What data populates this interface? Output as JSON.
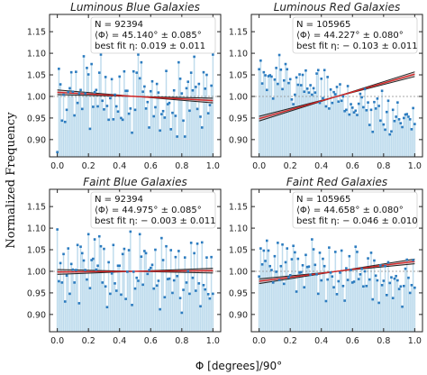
{
  "figure": {
    "ylabel": "Normalized Frequency",
    "xlabel": "Φ [degrees]/90°",
    "colors": {
      "points": "#2b7bbf",
      "fill": "#d6eaf5",
      "stem": "#b9d7ea",
      "fit": "#222222",
      "band": "#b39a9a",
      "model": "#d62728",
      "reference": "#8a8a8a"
    }
  },
  "chart_data": [
    {
      "type": "scatter",
      "title": "Luminous Blue Galaxies",
      "annotation": {
        "n": "N = 92394",
        "phi": "⟨Φ⟩ = 45.140° ± 0.085°",
        "fit": "best fit η: 0.019 ± 0.011"
      },
      "eta": 0.019,
      "xlim": [
        -0.05,
        1.05
      ],
      "ylim": [
        0.86,
        1.19
      ],
      "xticks": [
        "0.0",
        "0.2",
        "0.4",
        "0.6",
        "0.8",
        "1.0"
      ],
      "yticks": [
        "0.90",
        "0.95",
        "1.00",
        "1.05",
        "1.10",
        "1.15"
      ],
      "x": [
        0.0,
        0.01,
        0.02,
        0.03,
        0.04,
        0.05,
        0.06,
        0.07,
        0.08,
        0.09,
        0.1,
        0.11,
        0.12,
        0.13,
        0.14,
        0.15,
        0.16,
        0.17,
        0.18,
        0.19,
        0.2,
        0.21,
        0.22,
        0.23,
        0.24,
        0.25,
        0.26,
        0.27,
        0.28,
        0.29,
        0.3,
        0.31,
        0.32,
        0.33,
        0.34,
        0.35,
        0.36,
        0.37,
        0.38,
        0.39,
        0.4,
        0.41,
        0.42,
        0.43,
        0.44,
        0.45,
        0.46,
        0.47,
        0.48,
        0.49,
        0.5,
        0.51,
        0.52,
        0.53,
        0.54,
        0.55,
        0.56,
        0.57,
        0.58,
        0.59,
        0.6,
        0.61,
        0.62,
        0.63,
        0.64,
        0.65,
        0.66,
        0.67,
        0.68,
        0.69,
        0.7,
        0.71,
        0.72,
        0.73,
        0.74,
        0.75,
        0.76,
        0.77,
        0.78,
        0.79,
        0.8,
        0.81,
        0.82,
        0.83,
        0.84,
        0.85,
        0.86,
        0.87,
        0.88,
        0.89,
        0.9,
        0.91,
        0.92,
        0.93,
        0.94,
        0.95,
        0.96,
        0.97,
        0.98,
        0.99,
        1.0
      ],
      "y": [
        0.871,
        1.064,
        1.028,
        0.944,
        1.004,
        0.941,
        0.969,
        1.01,
        1.019,
        1.056,
        1.011,
        0.956,
        1.057,
        0.985,
        1.007,
        1.015,
        0.971,
        1.093,
        1.007,
        1.066,
        1.051,
        0.925,
        1.075,
        0.976,
        1.01,
        1.015,
        0.977,
        1.055,
        1.097,
        0.99,
        0.97,
        1.045,
        0.978,
        0.946,
        0.996,
        1.04,
        0.947,
        1.004,
        0.977,
        0.965,
        1.046,
        0.95,
        0.946,
        1.058,
        1.013,
        1.013,
        0.96,
        0.972,
        0.916,
        1.058,
        0.969,
        1.055,
        1.097,
        1.042,
        1.079,
        1.011,
        1.023,
        0.972,
        0.987,
        0.928,
        1.012,
        1.035,
        0.954,
        0.975,
        1.029,
        1.009,
        0.921,
        0.959,
        0.966,
        0.951,
        1.059,
        0.982,
        0.985,
        0.924,
        0.962,
        1.014,
        0.955,
        0.907,
        1.079,
        1.041,
        1.007,
        0.944,
        0.907,
        1.019,
        1.034,
        0.967,
        1.055,
        1.014,
        1.092,
        1.022,
        0.971,
        1.029,
        0.953,
        0.928,
        1.056,
        1.018,
        1.05,
        0.961,
        0.98,
        1.025,
        1.097
      ]
    },
    {
      "type": "scatter",
      "title": "Luminous Red Galaxies",
      "annotation": {
        "n": "N = 105965",
        "phi": "⟨Φ⟩ = 44.227° ± 0.080°",
        "fit": "best fit η: − 0.103 ± 0.011"
      },
      "eta": -0.103,
      "xlim": [
        -0.05,
        1.05
      ],
      "ylim": [
        0.86,
        1.19
      ],
      "xticks": [
        "0.0",
        "0.2",
        "0.4",
        "0.6",
        "0.8",
        "1.0"
      ],
      "yticks": [
        "0.90",
        "0.95",
        "1.00",
        "1.05",
        "1.10",
        "1.15"
      ],
      "x": [
        0.0,
        0.01,
        0.02,
        0.03,
        0.04,
        0.05,
        0.06,
        0.07,
        0.08,
        0.09,
        0.1,
        0.11,
        0.12,
        0.13,
        0.14,
        0.15,
        0.16,
        0.17,
        0.18,
        0.19,
        0.2,
        0.21,
        0.22,
        0.23,
        0.24,
        0.25,
        0.26,
        0.27,
        0.28,
        0.29,
        0.3,
        0.31,
        0.32,
        0.33,
        0.34,
        0.35,
        0.36,
        0.37,
        0.38,
        0.39,
        0.4,
        0.41,
        0.42,
        0.43,
        0.44,
        0.45,
        0.46,
        0.47,
        0.48,
        0.49,
        0.5,
        0.51,
        0.52,
        0.53,
        0.54,
        0.55,
        0.56,
        0.57,
        0.58,
        0.59,
        0.6,
        0.61,
        0.62,
        0.63,
        0.64,
        0.65,
        0.66,
        0.67,
        0.68,
        0.69,
        0.7,
        0.71,
        0.72,
        0.73,
        0.74,
        0.75,
        0.76,
        0.77,
        0.78,
        0.79,
        0.8,
        0.81,
        0.82,
        0.83,
        0.84,
        0.85,
        0.86,
        0.87,
        0.88,
        0.89,
        0.9,
        0.91,
        0.92,
        0.93,
        0.94,
        0.95,
        0.96,
        0.97,
        0.98,
        0.99,
        1.0
      ],
      "y": [
        1.063,
        1.083,
        1.03,
        1.056,
        1.049,
        1.015,
        1.047,
        1.049,
        1.046,
        0.995,
        1.039,
        1.066,
        1.029,
        1.096,
        1.062,
        1.017,
        1.037,
        1.075,
        1.063,
        1.031,
        1.04,
        0.993,
        0.982,
        1.004,
        1.044,
        1.027,
        1.051,
        1.026,
        1.05,
        1.011,
        1.06,
        1.018,
        1.009,
        1.026,
        1.004,
        1.019,
        1.009,
        1.053,
        1.061,
        0.985,
        1.041,
        0.996,
        1.061,
        0.977,
        1.045,
        0.972,
        1.016,
        0.985,
        1.01,
        1.005,
        1.022,
        0.988,
        1.028,
        0.99,
        1.0,
        0.966,
        0.969,
        1.024,
        0.958,
        0.982,
        0.974,
        0.963,
        0.967,
        0.957,
        0.983,
        1.006,
        0.998,
        0.975,
        1.017,
        0.968,
        0.986,
        0.934,
        0.969,
        0.918,
        0.987,
        0.972,
        0.995,
        0.978,
        0.944,
        1.013,
        0.935,
        0.923,
        0.964,
        0.99,
        0.912,
        0.919,
        0.969,
        0.943,
        0.953,
        0.986,
        0.947,
        0.938,
        0.929,
        0.95,
        0.958,
        0.959,
        0.953,
        0.947,
        0.924,
        0.973,
        0.936
      ]
    },
    {
      "type": "scatter",
      "title": "Faint Blue Galaxies",
      "annotation": {
        "n": "N = 92394",
        "phi": "⟨Φ⟩ = 44.975° ± 0.085°",
        "fit": "best fit η: − 0.003 ± 0.011"
      },
      "eta": -0.003,
      "xlim": [
        -0.05,
        1.05
      ],
      "ylim": [
        0.86,
        1.19
      ],
      "xticks": [
        "0.0",
        "0.2",
        "0.4",
        "0.6",
        "0.8",
        "1.0"
      ],
      "yticks": [
        "0.90",
        "0.95",
        "1.00",
        "1.05",
        "1.10",
        "1.15"
      ],
      "x": [
        0.0,
        0.01,
        0.02,
        0.03,
        0.04,
        0.05,
        0.06,
        0.07,
        0.08,
        0.09,
        0.1,
        0.11,
        0.12,
        0.13,
        0.14,
        0.15,
        0.16,
        0.17,
        0.18,
        0.19,
        0.2,
        0.21,
        0.22,
        0.23,
        0.24,
        0.25,
        0.26,
        0.27,
        0.28,
        0.29,
        0.3,
        0.31,
        0.32,
        0.33,
        0.34,
        0.35,
        0.36,
        0.37,
        0.38,
        0.39,
        0.4,
        0.41,
        0.42,
        0.43,
        0.44,
        0.45,
        0.46,
        0.47,
        0.48,
        0.49,
        0.5,
        0.51,
        0.52,
        0.53,
        0.54,
        0.55,
        0.56,
        0.57,
        0.58,
        0.59,
        0.6,
        0.61,
        0.62,
        0.63,
        0.64,
        0.65,
        0.66,
        0.67,
        0.68,
        0.69,
        0.7,
        0.71,
        0.72,
        0.73,
        0.74,
        0.75,
        0.76,
        0.77,
        0.78,
        0.79,
        0.8,
        0.81,
        0.82,
        0.83,
        0.84,
        0.85,
        0.86,
        0.87,
        0.88,
        0.89,
        0.9,
        0.91,
        0.92,
        0.93,
        0.94,
        0.95,
        0.96,
        0.97,
        0.98,
        0.99,
        1.0
      ],
      "y": [
        1.097,
        0.977,
        1.019,
        0.974,
        1.04,
        0.93,
        0.99,
        1.053,
        0.948,
        1.017,
        1.004,
        0.974,
        1.003,
        1.061,
        0.926,
        1.057,
        1.042,
        1.025,
        1.003,
        0.981,
        1.086,
        0.961,
        1.026,
        1.029,
        1.074,
        1.004,
        1.013,
        1.081,
        1.058,
        0.974,
        1.052,
        0.965,
        0.917,
        1.021,
        0.948,
        0.995,
        1.061,
        0.972,
        0.955,
        1.013,
        1.013,
        0.946,
        1.04,
        1.052,
        0.936,
        0.999,
        1.049,
        1.092,
        0.922,
        0.999,
        0.96,
        0.985,
        0.978,
        1.086,
        1.034,
        0.969,
        1.047,
        1.042,
        0.994,
        1.003,
        1.008,
        1.015,
        0.96,
        1.05,
        0.967,
        0.978,
        0.912,
        1.077,
        1.026,
        0.94,
        1.058,
        0.982,
        0.983,
        1.049,
        0.95,
        0.979,
        1.033,
        0.989,
        1.047,
        0.938,
        0.904,
        0.957,
        1.032,
        0.974,
        1.0,
        0.948,
        1.066,
        0.985,
        1.042,
        0.955,
        1.064,
        0.972,
        0.919,
        1.067,
        0.968,
        0.958,
        1.032,
        0.947,
        0.937,
        1.033,
        0.948
      ]
    },
    {
      "type": "scatter",
      "title": "Faint Red Galaxies",
      "annotation": {
        "n": "N = 105965",
        "phi": "⟨Φ⟩ = 44.658° ± 0.080°",
        "fit": "best fit η: − 0.046 ± 0.010"
      },
      "eta": -0.046,
      "xlim": [
        -0.05,
        1.05
      ],
      "ylim": [
        0.86,
        1.19
      ],
      "xticks": [
        "0.0",
        "0.2",
        "0.4",
        "0.6",
        "0.8",
        "1.0"
      ],
      "yticks": [
        "0.90",
        "0.95",
        "1.00",
        "1.05",
        "1.10",
        "1.15"
      ],
      "x": [
        0.0,
        0.01,
        0.02,
        0.03,
        0.04,
        0.05,
        0.06,
        0.07,
        0.08,
        0.09,
        0.1,
        0.11,
        0.12,
        0.13,
        0.14,
        0.15,
        0.16,
        0.17,
        0.18,
        0.19,
        0.2,
        0.21,
        0.22,
        0.23,
        0.24,
        0.25,
        0.26,
        0.27,
        0.28,
        0.29,
        0.3,
        0.31,
        0.32,
        0.33,
        0.34,
        0.35,
        0.36,
        0.37,
        0.38,
        0.39,
        0.4,
        0.41,
        0.42,
        0.43,
        0.44,
        0.45,
        0.46,
        0.47,
        0.48,
        0.49,
        0.5,
        0.51,
        0.52,
        0.53,
        0.54,
        0.55,
        0.56,
        0.57,
        0.58,
        0.59,
        0.6,
        0.61,
        0.62,
        0.63,
        0.64,
        0.65,
        0.66,
        0.67,
        0.68,
        0.69,
        0.7,
        0.71,
        0.72,
        0.73,
        0.74,
        0.75,
        0.76,
        0.77,
        0.78,
        0.79,
        0.8,
        0.81,
        0.82,
        0.83,
        0.84,
        0.85,
        0.86,
        0.87,
        0.88,
        0.89,
        0.9,
        0.91,
        0.92,
        0.93,
        0.94,
        0.95,
        0.96,
        0.97,
        0.98,
        0.99,
        1.0
      ],
      "y": [
        0.988,
        1.053,
        1.016,
        1.048,
        1.024,
        1.071,
        1.048,
        1.012,
        1.003,
        0.974,
        1.035,
        0.999,
        1.066,
        0.98,
        1.012,
        1.062,
        0.971,
        1.021,
        1.053,
        0.986,
        0.991,
        1.028,
        1.059,
        1.044,
        0.953,
        1.029,
        0.997,
        0.998,
        1.014,
        0.963,
        1.038,
        1.01,
        1.011,
        0.992,
        1.074,
        1.051,
        1.015,
        0.993,
        0.948,
        1.043,
        0.979,
        1.029,
        1.012,
        0.931,
        0.981,
        1.055,
        0.997,
        0.988,
        0.963,
        1.045,
        0.947,
        0.977,
        0.997,
        1.048,
        0.966,
        0.932,
        1.007,
        0.98,
        1.035,
        1.003,
        0.974,
        0.976,
        1.057,
        1.045,
        0.982,
        0.993,
        1.006,
        0.965,
        1.0,
        0.966,
        1.03,
        0.981,
        1.043,
        0.935,
        1.025,
        0.99,
        0.979,
        0.927,
        1.014,
        0.968,
        0.978,
        1.012,
        0.945,
        1.021,
        0.973,
        0.986,
        0.938,
        0.983,
        0.989,
        0.979,
        0.959,
        0.965,
        0.918,
        0.966,
        1.006,
        1.027,
        0.985,
        0.95,
        0.968,
        1.026,
        0.962
      ]
    }
  ]
}
